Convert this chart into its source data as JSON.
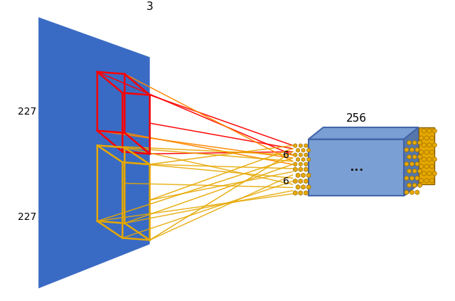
{
  "bg_color": "#ffffff",
  "blue_panel_color": "#3a6bc4",
  "box_blue": "#7a9fd4",
  "box_blue_dark": "#5577aa",
  "box_outline": "#4466aa",
  "gold_color": "#e6a800",
  "gold_edge": "#c47f00",
  "red_color": "#ff0000",
  "orange_color": "#ff8800",
  "panel_label_3": "3",
  "panel_label_227_top": "227",
  "panel_label_227_bot": "227",
  "label_6_top": "6",
  "label_6_bot": "6",
  "label_256": "256",
  "label_dots": "...",
  "figsize": [
    6.4,
    4.23
  ],
  "dpi": 100
}
